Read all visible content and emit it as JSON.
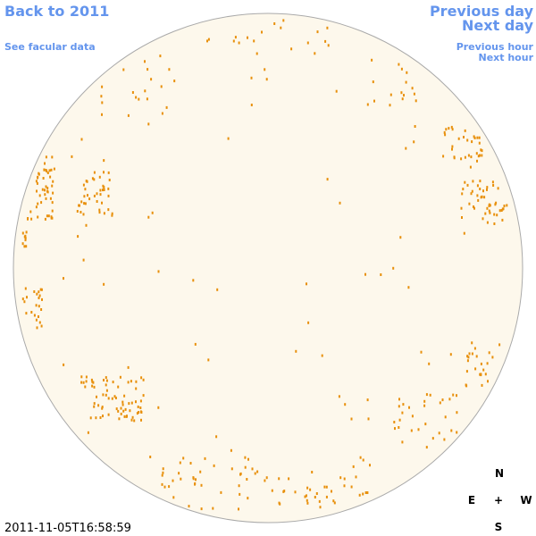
{
  "header": {
    "back": "Back to 2011",
    "facular": "See facular data",
    "previous_day": "Previous day",
    "next_day": "Next day",
    "previous_hour": "Previous hour",
    "next_hour": "Next hour"
  },
  "compass": {
    "north": "N",
    "east": "E",
    "center": "+",
    "west": "W",
    "south": "S"
  },
  "timestamp": "2011-11-05T16:58:59"
}
